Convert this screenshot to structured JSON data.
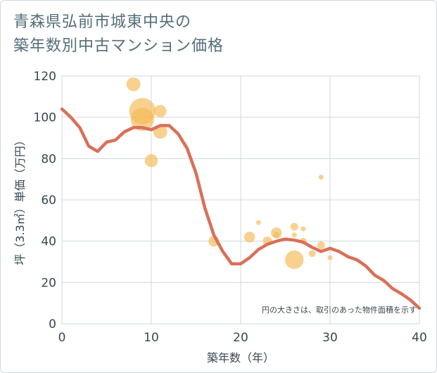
{
  "title_line1": "青森県弘前市城東中央の",
  "title_line2": "築年数別中古マンション価格",
  "chart_data": {
    "type": "scatter",
    "xlabel": "築年数（年）",
    "ylabel": "坪（3.3㎡）単価（万円）",
    "xlim": [
      0,
      40
    ],
    "ylim": [
      0,
      120
    ],
    "xticks": [
      0,
      10,
      20,
      30,
      40
    ],
    "yticks": [
      0,
      20,
      40,
      60,
      80,
      100,
      120
    ],
    "grid": true,
    "note": "円の大きさは、取引のあった物件面積を示す",
    "colors": {
      "bubble": "#f5b953",
      "line": "#d9705a",
      "grid": "#cfd8dc"
    },
    "bubbles": [
      {
        "x": 8,
        "y": 116,
        "size": 0.45
      },
      {
        "x": 9,
        "y": 103,
        "size": 0.85
      },
      {
        "x": 9,
        "y": 99,
        "size": 0.75
      },
      {
        "x": 11,
        "y": 103,
        "size": 0.4
      },
      {
        "x": 11,
        "y": 93,
        "size": 0.45
      },
      {
        "x": 10,
        "y": 79,
        "size": 0.42
      },
      {
        "x": 17,
        "y": 40,
        "size": 0.35
      },
      {
        "x": 21,
        "y": 42,
        "size": 0.35
      },
      {
        "x": 22,
        "y": 49,
        "size": 0.12
      },
      {
        "x": 23,
        "y": 40,
        "size": 0.3
      },
      {
        "x": 24,
        "y": 44,
        "size": 0.35
      },
      {
        "x": 24,
        "y": 43,
        "size": 0.2
      },
      {
        "x": 26,
        "y": 47,
        "size": 0.25
      },
      {
        "x": 26,
        "y": 43,
        "size": 0.15
      },
      {
        "x": 27,
        "y": 46,
        "size": 0.12
      },
      {
        "x": 27,
        "y": 40,
        "size": 0.22
      },
      {
        "x": 26,
        "y": 31,
        "size": 0.6
      },
      {
        "x": 28,
        "y": 34,
        "size": 0.22
      },
      {
        "x": 29,
        "y": 71,
        "size": 0.12
      },
      {
        "x": 29,
        "y": 38,
        "size": 0.25
      },
      {
        "x": 30,
        "y": 32,
        "size": 0.12
      }
    ],
    "trend": {
      "x": [
        0,
        1,
        2,
        3,
        4,
        5,
        6,
        7,
        8,
        9,
        10,
        11,
        12,
        13,
        14,
        15,
        16,
        17,
        18,
        19,
        20,
        21,
        22,
        23,
        24,
        25,
        26,
        27,
        28,
        29,
        30,
        31,
        32,
        33,
        34,
        35,
        36,
        37,
        38,
        39,
        40
      ],
      "y": [
        104,
        100,
        95,
        86,
        83.5,
        88,
        89,
        93,
        95,
        95,
        94,
        96,
        96,
        92,
        85,
        73,
        56,
        43,
        35,
        29,
        29,
        32,
        36,
        38.5,
        40,
        41,
        40.5,
        39.5,
        37,
        35,
        36.5,
        35,
        32.5,
        31,
        28,
        23.5,
        21,
        17,
        14.5,
        11.5,
        7.5
      ]
    }
  }
}
